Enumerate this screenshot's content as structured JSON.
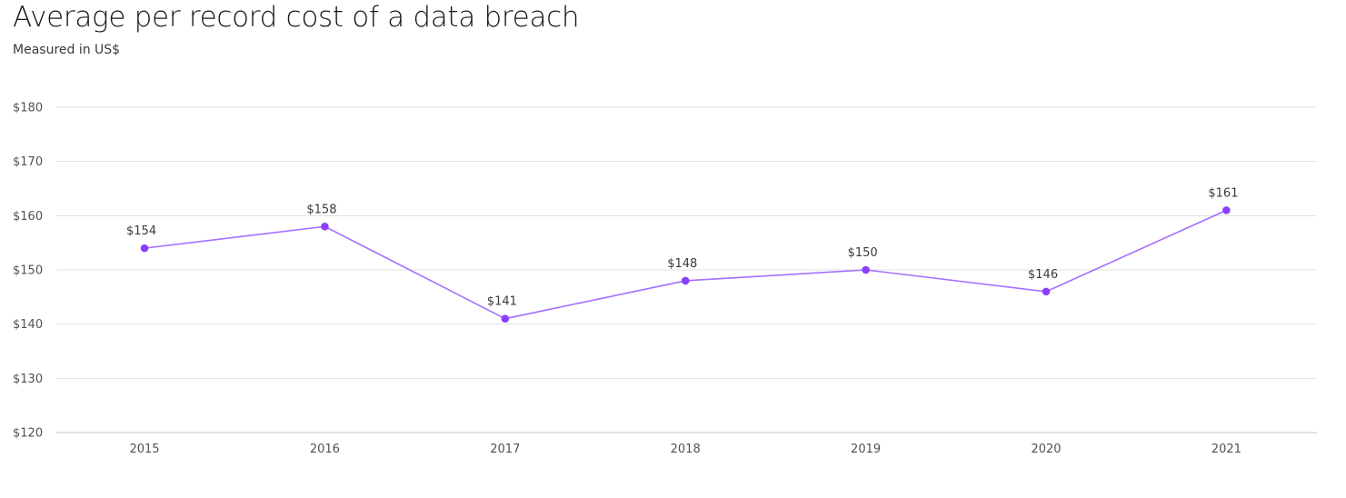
{
  "chart_data": {
    "type": "line",
    "title": "Average per record cost of a data breach",
    "subtitle": "Measured in US$",
    "xlabel": "",
    "ylabel": "",
    "x": [
      "2015",
      "2016",
      "2017",
      "2018",
      "2019",
      "2020",
      "2021"
    ],
    "series": [
      {
        "values": [
          154,
          158,
          141,
          148,
          150,
          146,
          161
        ]
      }
    ],
    "data_labels": [
      "$154",
      "$158",
      "$141",
      "$148",
      "$150",
      "$146",
      "$161"
    ],
    "ylim": [
      120,
      180
    ],
    "yticks": [
      120,
      130,
      140,
      150,
      160,
      170,
      180
    ],
    "ytick_labels": [
      "$120",
      "$130",
      "$140",
      "$150",
      "$160",
      "$170",
      "$180"
    ],
    "grid": true,
    "legend": "none",
    "colors": {
      "line": "#a56eff",
      "point": "#8a3ffc",
      "grid": "#e0e0e0",
      "axis": "#c6c6c6"
    }
  }
}
